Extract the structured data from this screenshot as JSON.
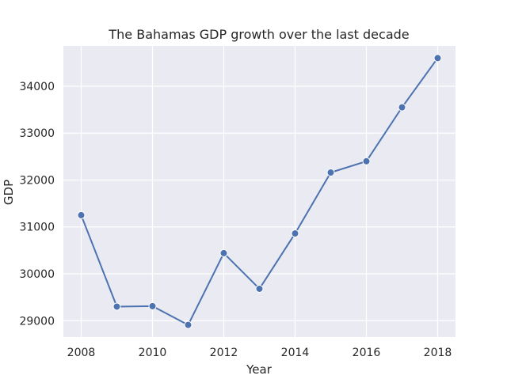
{
  "chart_data": {
    "type": "line",
    "title": "The Bahamas GDP growth over the last decade",
    "xlabel": "Year",
    "ylabel": "GDP",
    "x": [
      2008,
      2009,
      2010,
      2011,
      2012,
      2013,
      2014,
      2015,
      2016,
      2017,
      2018
    ],
    "series": [
      {
        "name": "",
        "values": [
          31250,
          29300,
          29310,
          28910,
          30440,
          29680,
          30860,
          32160,
          32400,
          33550,
          34600
        ]
      }
    ],
    "xlim": [
      2007.5,
      2018.5
    ],
    "ylim": [
      28650,
      34860
    ],
    "xticks": [
      2008,
      2010,
      2012,
      2014,
      2016,
      2018
    ],
    "yticks": [
      29000,
      30000,
      31000,
      32000,
      33000,
      34000
    ],
    "grid": true,
    "legend": "none",
    "colors": {
      "plot_background": "#eaeaf2",
      "grid": "#ffffff",
      "line": "#4c72b0",
      "text": "#262626"
    }
  }
}
